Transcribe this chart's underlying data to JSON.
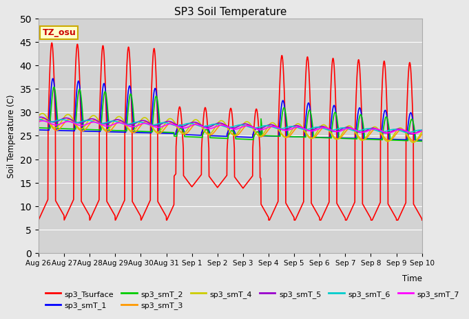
{
  "title": "SP3 Soil Temperature",
  "ylabel": "Soil Temperature (C)",
  "xlabel": "Time",
  "tz_label": "TZ_osu",
  "ylim": [
    0,
    50
  ],
  "yticks": [
    0,
    5,
    10,
    15,
    20,
    25,
    30,
    35,
    40,
    45,
    50
  ],
  "bg_color": "#e8e8e8",
  "plot_bg_color": "#d3d3d3",
  "series_order": [
    "sp3_Tsurface",
    "sp3_smT_1",
    "sp3_smT_2",
    "sp3_smT_3",
    "sp3_smT_4",
    "sp3_smT_5",
    "sp3_smT_6",
    "sp3_smT_7"
  ],
  "series": {
    "sp3_Tsurface": {
      "color": "#ff0000",
      "lw": 1.2
    },
    "sp3_smT_1": {
      "color": "#0000ff",
      "lw": 1.2
    },
    "sp3_smT_2": {
      "color": "#00cc00",
      "lw": 1.2
    },
    "sp3_smT_3": {
      "color": "#ff9900",
      "lw": 1.2
    },
    "sp3_smT_4": {
      "color": "#cccc00",
      "lw": 1.2
    },
    "sp3_smT_5": {
      "color": "#9900cc",
      "lw": 1.2
    },
    "sp3_smT_6": {
      "color": "#00cccc",
      "lw": 1.2
    },
    "sp3_smT_7": {
      "color": "#ff00ff",
      "lw": 1.2
    }
  },
  "x_tick_labels": [
    "Aug 26",
    "Aug 27",
    "Aug 28",
    "Aug 29",
    "Aug 30",
    "Aug 31",
    "Sep 1",
    "Sep 2",
    "Sep 3",
    "Sep 4",
    "Sep 5",
    "Sep 6",
    "Sep 7",
    "Sep 8",
    "Sep 9",
    "Sep 10"
  ],
  "n_days": 15
}
